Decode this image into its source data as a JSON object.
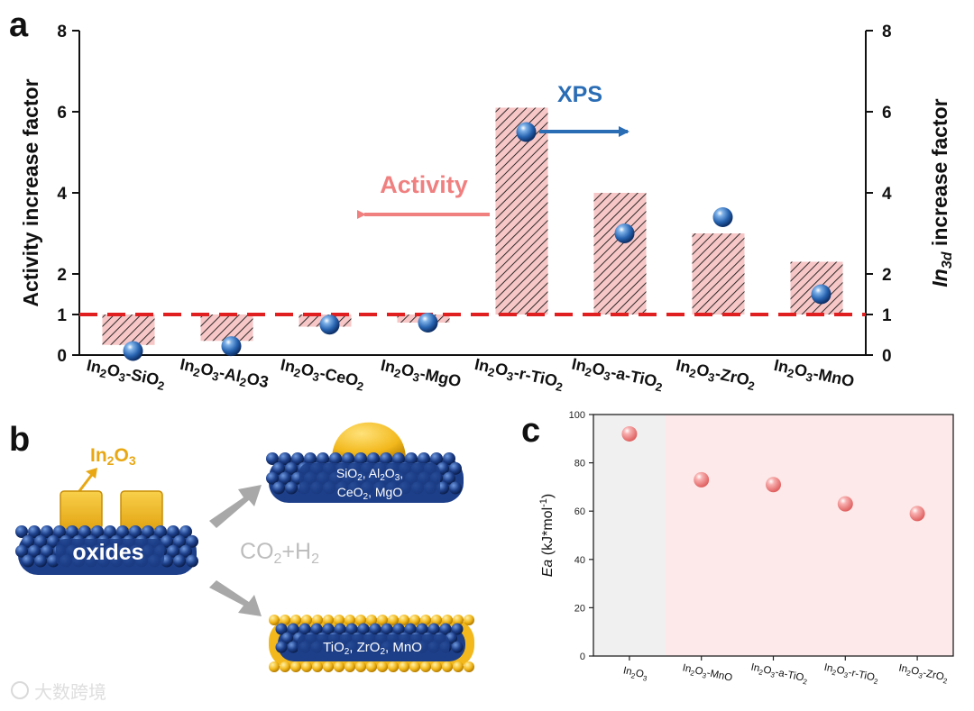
{
  "panel_labels": {
    "a": "a",
    "b": "b",
    "c": "c"
  },
  "watermark": "大数跨境",
  "chart_data": [
    {
      "panel": "a",
      "type": "bar",
      "title": "",
      "ylabel": "Activity increase factor",
      "ylabel_right_italic": "In",
      "ylabel_right_sub": "3d",
      "ylabel_right_rest": " increase factor",
      "ylim": [
        0,
        8
      ],
      "yticks": [
        "0",
        "1",
        "2",
        "4",
        "6",
        "8"
      ],
      "ytick_values": [
        0,
        1,
        2,
        4,
        6,
        8
      ],
      "categories": [
        {
          "main": "In",
          "s1": "2",
          "m2": "O",
          "s2": "3",
          "m3": "-SiO",
          "s3": "2",
          "m4": ""
        },
        {
          "main": "In",
          "s1": "2",
          "m2": "O",
          "s2": "3",
          "m3": "-Al",
          "s3": "2",
          "m4": "O3"
        },
        {
          "main": "In",
          "s1": "2",
          "m2": "O",
          "s2": "3",
          "m3": "-CeO",
          "s3": "2",
          "m4": ""
        },
        {
          "main": "In",
          "s1": "2",
          "m2": "O",
          "s2": "3",
          "m3": "-MgO",
          "s3": "",
          "m4": ""
        },
        {
          "main": "In",
          "s1": "2",
          "m2": "O",
          "s2": "3",
          "m3": "-r-TiO",
          "s3": "2",
          "m4": ""
        },
        {
          "main": "In",
          "s1": "2",
          "m2": "O",
          "s2": "3",
          "m3": "-a-TiO",
          "s3": "2",
          "m4": ""
        },
        {
          "main": "In",
          "s1": "2",
          "m2": "O",
          "s2": "3",
          "m3": "-ZrO",
          "s3": "2",
          "m4": ""
        },
        {
          "main": "In",
          "s1": "2",
          "m2": "O",
          "s2": "3",
          "m3": "-MnO",
          "s3": "",
          "m4": ""
        }
      ],
      "series": [
        {
          "name": "Activity",
          "kind": "bar",
          "values": [
            0.25,
            0.35,
            0.7,
            0.8,
            6.1,
            4.0,
            3.0,
            2.3
          ]
        },
        {
          "name": "XPS",
          "kind": "scatter",
          "values": [
            0.1,
            0.22,
            0.75,
            0.8,
            5.5,
            3.0,
            3.4,
            1.5
          ]
        }
      ],
      "reference_line": 1,
      "annotations": {
        "activity": "Activity",
        "xps": "XPS"
      },
      "colors": {
        "bar_fill": "#f7c6c6",
        "bar_hatch": "#111111",
        "dash": "#e02020",
        "activity_arrow": "#f08080",
        "xps": "#2a6db5",
        "sphere": "#2763b0"
      }
    },
    {
      "panel": "c",
      "type": "scatter",
      "ylabel_italic": "Ea",
      "ylabel_rest": " (kJ*mol",
      "ylabel_sup": "-1",
      "ylabel_end": ")",
      "ylim": [
        0,
        100
      ],
      "yticks": [
        "0",
        "20",
        "40",
        "60",
        "80",
        "100"
      ],
      "ytick_values": [
        0,
        20,
        40,
        60,
        80,
        100
      ],
      "categories": [
        {
          "a": "In",
          "b": "2",
          "c": "O",
          "d": "3",
          "e": "",
          "f": "",
          "g": ""
        },
        {
          "a": "In",
          "b": "2",
          "c": "O",
          "d": "3",
          "e": "-MnO",
          "f": "",
          "g": ""
        },
        {
          "a": "In",
          "b": "2",
          "c": "O",
          "d": "3",
          "e": "-a-TiO",
          "f": "2",
          "g": ""
        },
        {
          "a": "In",
          "b": "2",
          "c": "O",
          "d": "3",
          "e": "-r-TiO",
          "f": "2",
          "g": ""
        },
        {
          "a": "In",
          "b": "2",
          "c": "O",
          "d": "3",
          "e": "-ZrO",
          "f": "2",
          "g": ""
        }
      ],
      "values": [
        92,
        73,
        71,
        63,
        59
      ],
      "colors": {
        "point": "#f08080",
        "bg_gray": "#f0f0f0",
        "bg_pink": "#fde9e9"
      }
    }
  ],
  "schematic": {
    "in2o3_label": {
      "a": "In",
      "b": "2",
      "c": "O",
      "d": "3"
    },
    "oxides_label": "oxides",
    "reaction": {
      "a": "CO",
      "b": "2",
      "c": "+H",
      "d": "2"
    },
    "top_support": {
      "line1": {
        "a": "SiO",
        "b": "2",
        "c": ", Al",
        "d": "2",
        "e": "O",
        "f": "3",
        "g": ","
      },
      "line2": {
        "a": "CeO",
        "b": "2",
        "c": ", MgO"
      }
    },
    "bottom_support": {
      "a": "TiO",
      "b": "2",
      "c": ",  ZrO",
      "d": "2",
      "e": ", MnO"
    },
    "colors": {
      "gold": "#f2b81c",
      "blue": "#1d3f8a",
      "arrow": "#a8a8a8"
    }
  }
}
